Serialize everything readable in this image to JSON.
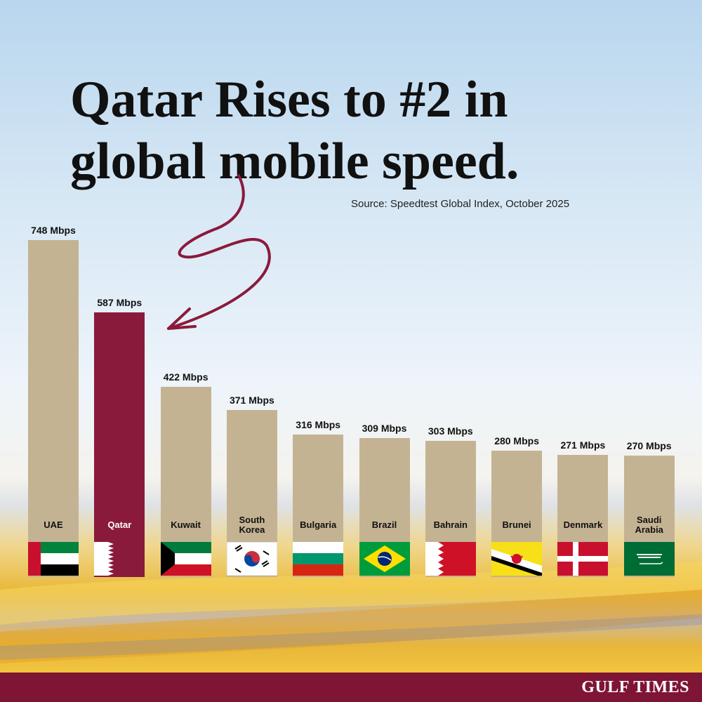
{
  "chart_data": {
    "type": "bar",
    "title": "Qatar Rises to #2 in global mobile speed.",
    "subtitle": "Source: Speedtest Global Index, October 2025",
    "categories": [
      "UAE",
      "Qatar",
      "Kuwait",
      "South Korea",
      "Bulgaria",
      "Brazil",
      "Bahrain",
      "Brunei",
      "Denmark",
      "Saudi Arabia"
    ],
    "values": [
      748,
      587,
      422,
      371,
      316,
      309,
      303,
      280,
      271,
      270
    ],
    "value_labels": [
      "748 Mbps",
      "587 Mbps",
      "422 Mbps",
      "371 Mbps",
      "316 Mbps",
      "309 Mbps",
      "303 Mbps",
      "280 Mbps",
      "271 Mbps",
      "270 Mbps"
    ],
    "colors": [
      "#c4b393",
      "#8a1a3b",
      "#c4b393",
      "#c4b393",
      "#c4b393",
      "#c4b393",
      "#c4b393",
      "#c4b393",
      "#c4b393",
      "#c4b393"
    ]
  },
  "footer": {
    "brand": "GULF TIMES"
  }
}
